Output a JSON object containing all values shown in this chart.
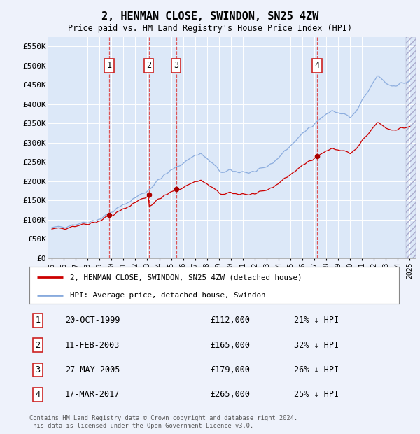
{
  "title": "2, HENMAN CLOSE, SWINDON, SN25 4ZW",
  "subtitle": "Price paid vs. HM Land Registry's House Price Index (HPI)",
  "background_color": "#eef2fb",
  "plot_bg_color": "#dce8f8",
  "legend_line1": "2, HENMAN CLOSE, SWINDON, SN25 4ZW (detached house)",
  "legend_line2": "HPI: Average price, detached house, Swindon",
  "footer": "Contains HM Land Registry data © Crown copyright and database right 2024.\nThis data is licensed under the Open Government Licence v3.0.",
  "transactions": [
    {
      "id": 1,
      "date": "20-OCT-1999",
      "price": 112000,
      "hpi_pct": "21% ↓ HPI",
      "x_year": 1999.79
    },
    {
      "id": 2,
      "date": "11-FEB-2003",
      "price": 165000,
      "hpi_pct": "32% ↓ HPI",
      "x_year": 2003.12
    },
    {
      "id": 3,
      "date": "27-MAY-2005",
      "price": 179000,
      "hpi_pct": "26% ↓ HPI",
      "x_year": 2005.41
    },
    {
      "id": 4,
      "date": "17-MAR-2017",
      "price": 265000,
      "hpi_pct": "25% ↓ HPI",
      "x_year": 2017.21
    }
  ],
  "ylim": [
    0,
    575000
  ],
  "yticks": [
    0,
    50000,
    100000,
    150000,
    200000,
    250000,
    300000,
    350000,
    400000,
    450000,
    500000,
    550000
  ],
  "ytick_labels": [
    "£0",
    "£50K",
    "£100K",
    "£150K",
    "£200K",
    "£250K",
    "£300K",
    "£350K",
    "£400K",
    "£450K",
    "£500K",
    "£550K"
  ],
  "xlim_start": 1994.7,
  "xlim_end": 2025.5,
  "red_color": "#cc0000",
  "blue_color": "#88aadd",
  "marker_color": "#aa0000",
  "dashed_color": "#dd4444"
}
